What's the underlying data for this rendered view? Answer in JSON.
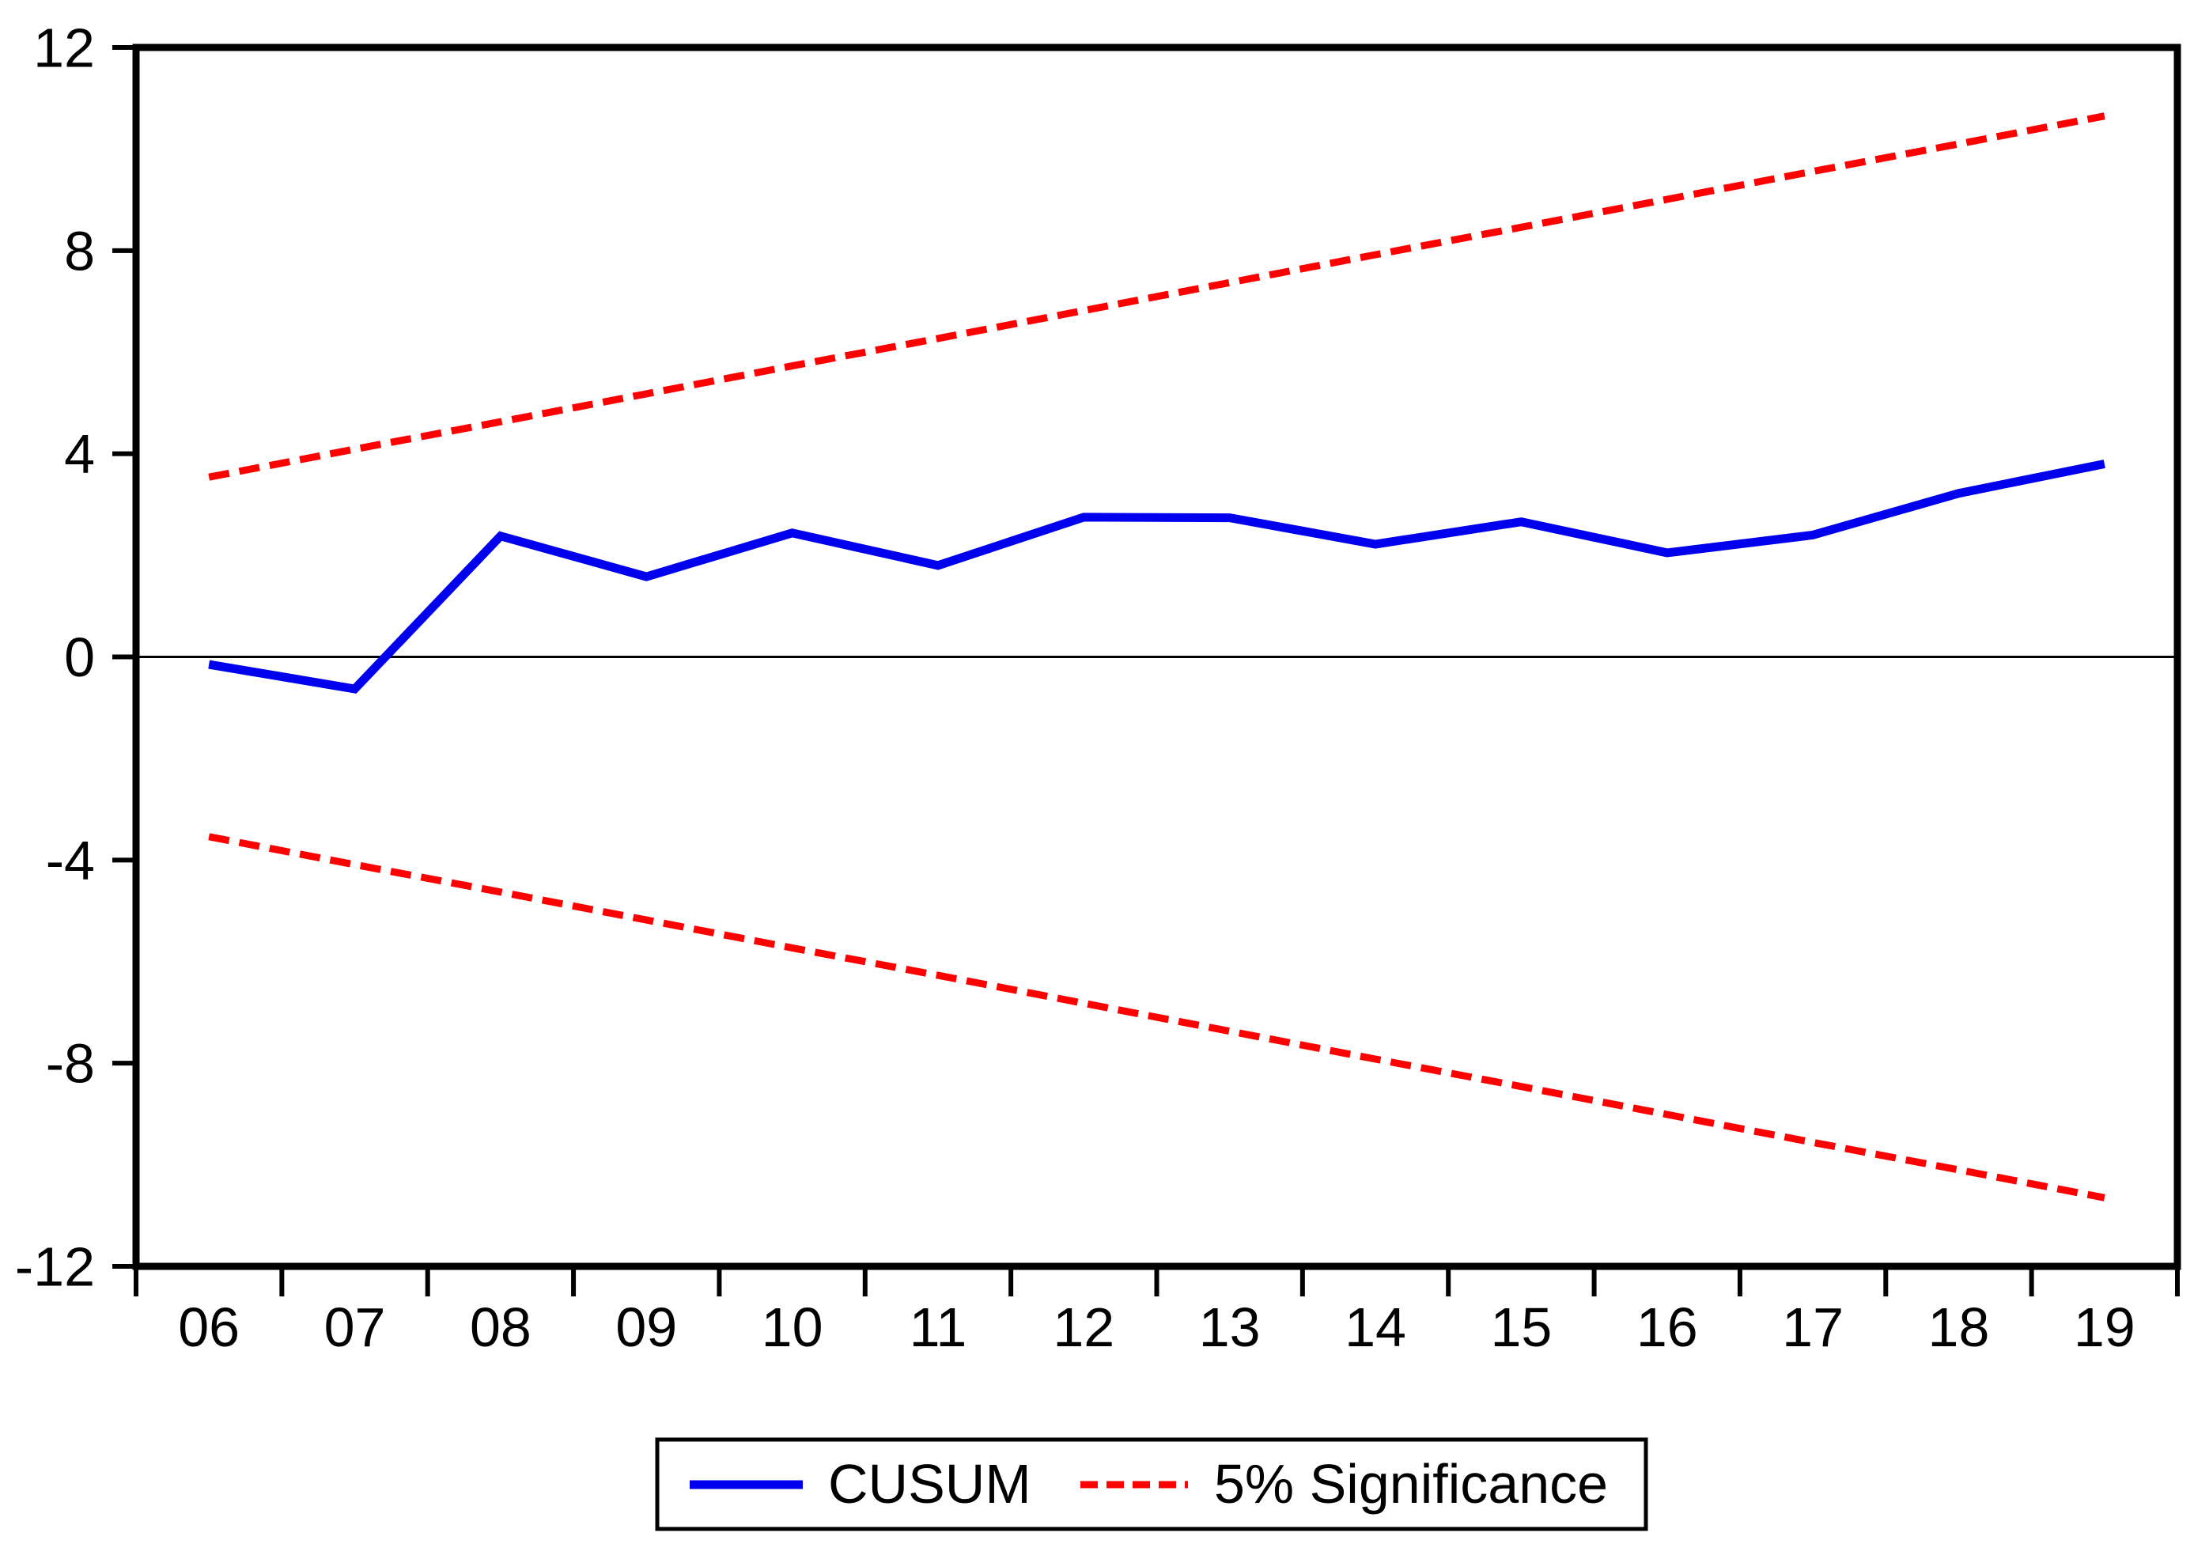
{
  "chart_data": {
    "type": "line",
    "title": "",
    "categories": [
      "06",
      "07",
      "08",
      "09",
      "10",
      "11",
      "12",
      "13",
      "14",
      "15",
      "16",
      "17",
      "18",
      "19"
    ],
    "series": [
      {
        "name": "CUSUM",
        "color": "#0000ee",
        "style": "solid",
        "values": [
          -0.15,
          -0.63,
          2.38,
          1.58,
          2.44,
          1.8,
          2.75,
          2.74,
          2.22,
          2.66,
          2.05,
          2.4,
          3.22,
          3.8
        ]
      },
      {
        "name": "5% Significance (upper bound)",
        "color": "#ff0000",
        "style": "dashed",
        "values": [
          3.54,
          4.09,
          4.63,
          5.18,
          5.73,
          6.27,
          6.82,
          7.37,
          7.92,
          8.46,
          9.01,
          9.56,
          10.1,
          10.65
        ]
      },
      {
        "name": "5% Significance (lower bound)",
        "color": "#ff0000",
        "style": "dashed",
        "values": [
          -3.54,
          -4.09,
          -4.63,
          -5.18,
          -5.73,
          -6.27,
          -6.82,
          -7.37,
          -7.92,
          -8.46,
          -9.01,
          -9.56,
          -10.1,
          -10.65
        ]
      }
    ],
    "xlabel": "",
    "ylabel": "",
    "ylim": [
      -12,
      12
    ],
    "yticks": [
      -12,
      -8,
      -4,
      0,
      4,
      8,
      12
    ],
    "ytick_labels": [
      "-12",
      "-8",
      "-4",
      "0",
      "4",
      "8",
      "12"
    ],
    "grid": false,
    "zero_line": true,
    "legend": {
      "position": "bottom",
      "entries": [
        {
          "label": "CUSUM",
          "color": "#0000ee",
          "style": "solid"
        },
        {
          "label": "5% Significance",
          "color": "#ff0000",
          "style": "dashed"
        }
      ]
    }
  },
  "colors": {
    "axis": "#000000",
    "background": "#ffffff",
    "cusum": "#0000ee",
    "significance": "#ff0000"
  }
}
